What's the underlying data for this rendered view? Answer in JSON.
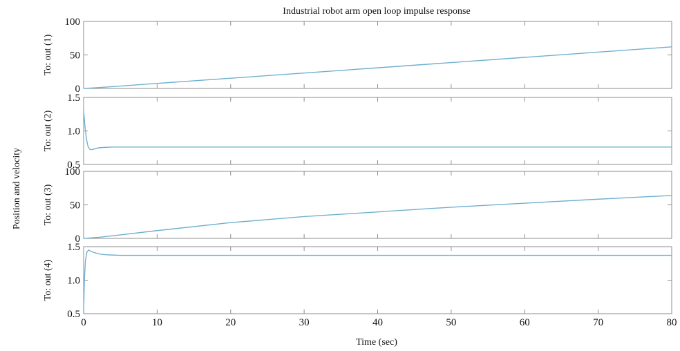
{
  "chart_data": {
    "type": "line",
    "title": "Industrial robot arm open loop impulse response",
    "xlabel": "Time (sec)",
    "ylabel": "Position and velocity",
    "xlim": [
      0,
      80
    ],
    "x_ticks": [
      "0",
      "10",
      "20",
      "30",
      "40",
      "50",
      "60",
      "70",
      "80"
    ],
    "grid": false,
    "line_color": "#6fb0cf",
    "subplots": [
      {
        "ylabel": "To: out (1)",
        "ylim": [
          0,
          100
        ],
        "y_ticks": [
          "0",
          "50",
          "100"
        ],
        "series": [
          {
            "x": [
              0,
              2,
              5,
              10,
              20,
              30,
              40,
              50,
              60,
              70,
              80
            ],
            "y": [
              0,
              1.2,
              3.5,
              7.5,
              15.3,
              23,
              30.8,
              38.6,
              46.4,
              54.2,
              62
            ]
          }
        ]
      },
      {
        "ylabel": "To: out (2)",
        "ylim": [
          0.5,
          1.5
        ],
        "y_ticks": [
          "0.5",
          "1.0",
          "1.5"
        ],
        "series": [
          {
            "x": [
              0,
              0.2,
              0.4,
              0.6,
              0.8,
              1.0,
              1.3,
              1.7,
              2.2,
              3,
              4,
              5,
              10,
              20,
              40,
              60,
              80
            ],
            "y": [
              1.3,
              1.05,
              0.87,
              0.77,
              0.73,
              0.72,
              0.725,
              0.74,
              0.75,
              0.755,
              0.76,
              0.76,
              0.76,
              0.76,
              0.76,
              0.76,
              0.76
            ]
          }
        ]
      },
      {
        "ylabel": "To: out (3)",
        "ylim": [
          0,
          100
        ],
        "y_ticks": [
          "0",
          "50",
          "100"
        ],
        "series": [
          {
            "x": [
              0,
              2,
              5,
              10,
              20,
              30,
              40,
              50,
              60,
              70,
              80
            ],
            "y": [
              0,
              1.5,
              5.2,
              11.6,
              23.5,
              32.5,
              39.5,
              46.5,
              52.5,
              58.5,
              64
            ]
          }
        ]
      },
      {
        "ylabel": "To: out (4)",
        "ylim": [
          0.5,
          1.5
        ],
        "y_ticks": [
          "0.5",
          "1.0",
          "1.5"
        ],
        "series": [
          {
            "x": [
              0,
              0.1,
              0.25,
              0.45,
              0.7,
              1.0,
              1.5,
              2.2,
              3,
              4,
              5,
              10,
              20,
              40,
              60,
              80
            ],
            "y": [
              0.5,
              1.0,
              1.3,
              1.42,
              1.45,
              1.43,
              1.41,
              1.39,
              1.38,
              1.375,
              1.37,
              1.37,
              1.37,
              1.37,
              1.37,
              1.37
            ]
          }
        ]
      }
    ]
  }
}
